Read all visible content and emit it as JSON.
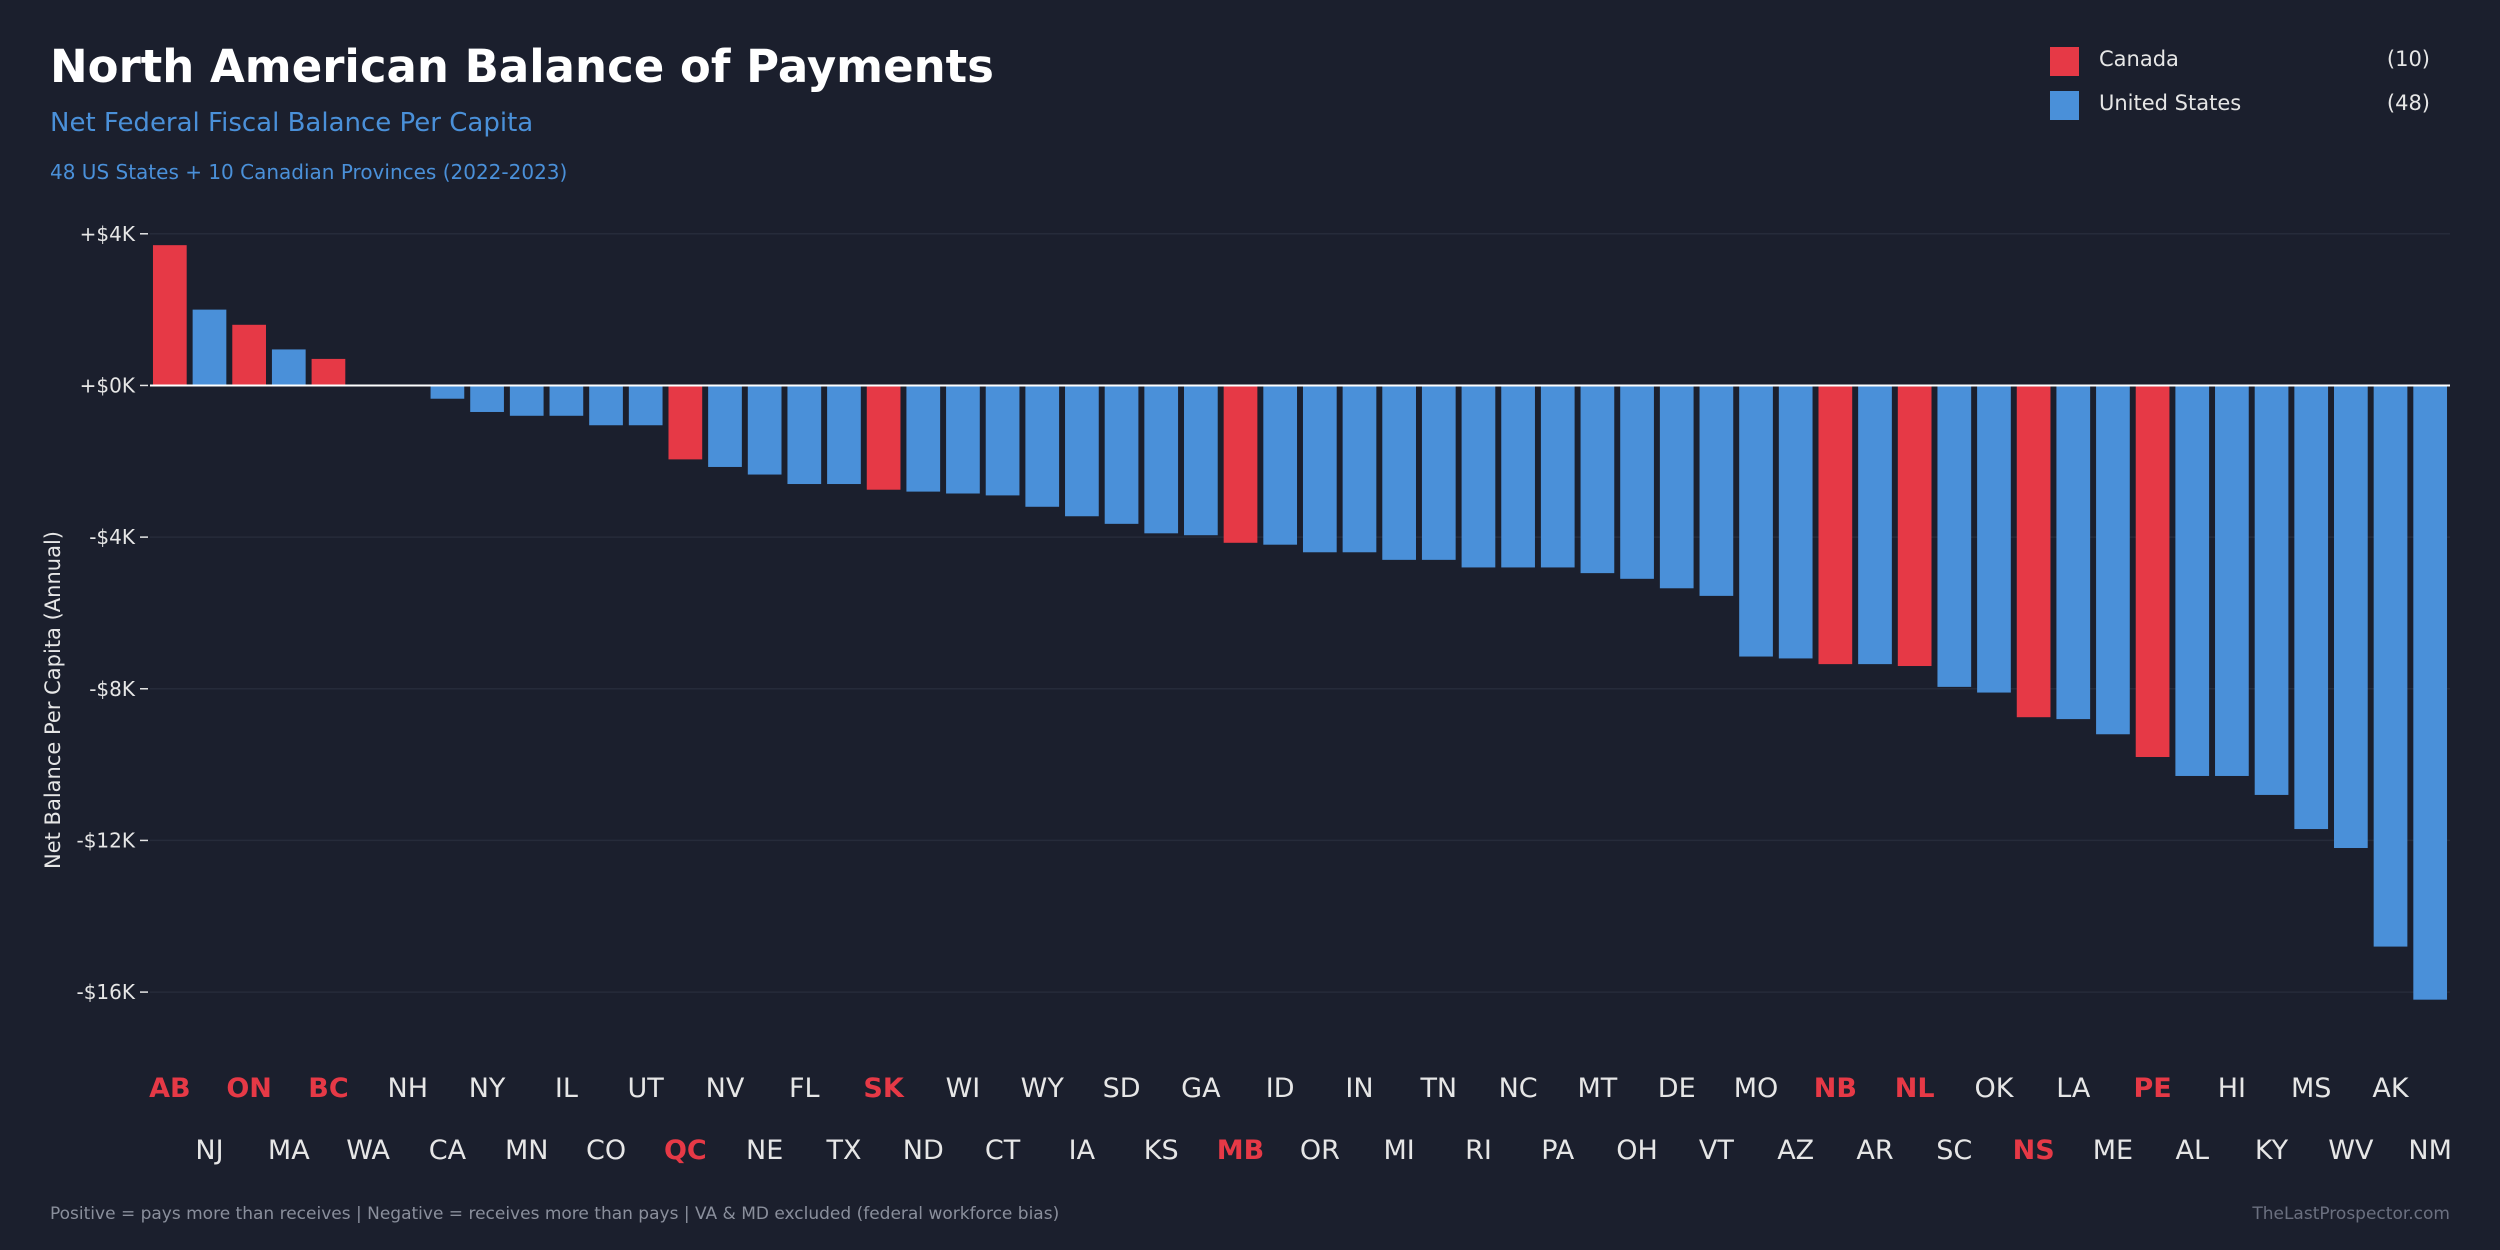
{
  "header": {
    "title": "North American Balance of Payments",
    "subtitle": "Net Federal Fiscal Balance Per Capita",
    "subsubtitle": "48 US States + 10 Canadian Provinces (2022-2023)"
  },
  "legend": {
    "items": [
      {
        "label": "Canada",
        "count": "(10)",
        "color": "#e63946"
      },
      {
        "label": "United States",
        "count": "(48)",
        "color": "#4a90d9"
      }
    ]
  },
  "footer": {
    "note": "Positive = pays more than receives  |  Negative = receives more than pays  |  VA & MD excluded (federal workforce bias)",
    "credit": "TheLastProspector.com"
  },
  "colors": {
    "canada": "#e63946",
    "us": "#4a90d9",
    "label_us": "#e6e6e6",
    "background": "#1b1f2d"
  },
  "chart_data": {
    "type": "bar",
    "ylabel": "Net Balance Per Capita (Annual)",
    "ylim": [
      -17000,
      4100
    ],
    "yticks": [
      4000,
      0,
      -4000,
      -8000,
      -12000,
      -16000
    ],
    "ytick_labels": [
      "+$4K",
      "+$0K",
      "-$4K",
      "-$8K",
      "-$12K",
      "-$16K"
    ],
    "grid": true,
    "legend_position": "top-right",
    "categories": [
      "AB",
      "NJ",
      "ON",
      "MA",
      "BC",
      "WA",
      "NH",
      "CA",
      "NY",
      "MN",
      "IL",
      "CO",
      "UT",
      "QC",
      "NV",
      "NE",
      "FL",
      "TX",
      "SK",
      "ND",
      "WI",
      "CT",
      "WY",
      "IA",
      "SD",
      "KS",
      "GA",
      "MB",
      "ID",
      "OR",
      "IN",
      "MI",
      "TN",
      "RI",
      "NC",
      "PA",
      "MT",
      "OH",
      "DE",
      "VT",
      "MO",
      "AZ",
      "NB",
      "AR",
      "NL",
      "SC",
      "OK",
      "NS",
      "LA",
      "ME",
      "PE",
      "AL",
      "HI",
      "KY",
      "MS",
      "WV",
      "AK",
      "NM"
    ],
    "countries": [
      "CA",
      "US",
      "CA",
      "US",
      "CA",
      "US",
      "US",
      "US",
      "US",
      "US",
      "US",
      "US",
      "US",
      "CA",
      "US",
      "US",
      "US",
      "US",
      "CA",
      "US",
      "US",
      "US",
      "US",
      "US",
      "US",
      "US",
      "US",
      "CA",
      "US",
      "US",
      "US",
      "US",
      "US",
      "US",
      "US",
      "US",
      "US",
      "US",
      "US",
      "US",
      "US",
      "US",
      "CA",
      "US",
      "CA",
      "US",
      "US",
      "CA",
      "US",
      "US",
      "CA",
      "US",
      "US",
      "US",
      "US",
      "US",
      "US",
      "US"
    ],
    "values": [
      3700,
      2000,
      1600,
      950,
      700,
      0,
      0,
      -350,
      -700,
      -800,
      -800,
      -1050,
      -1050,
      -1950,
      -2150,
      -2350,
      -2600,
      -2600,
      -2750,
      -2800,
      -2850,
      -2900,
      -3200,
      -3450,
      -3650,
      -3900,
      -3950,
      -4150,
      -4200,
      -4400,
      -4400,
      -4600,
      -4600,
      -4800,
      -4800,
      -4800,
      -4950,
      -5100,
      -5350,
      -5550,
      -7150,
      -7200,
      -7350,
      -7350,
      -7400,
      -7950,
      -8100,
      -8750,
      -8800,
      -9200,
      -9800,
      -10300,
      -10300,
      -10800,
      -11700,
      -12200,
      -14800,
      -16200
    ]
  }
}
